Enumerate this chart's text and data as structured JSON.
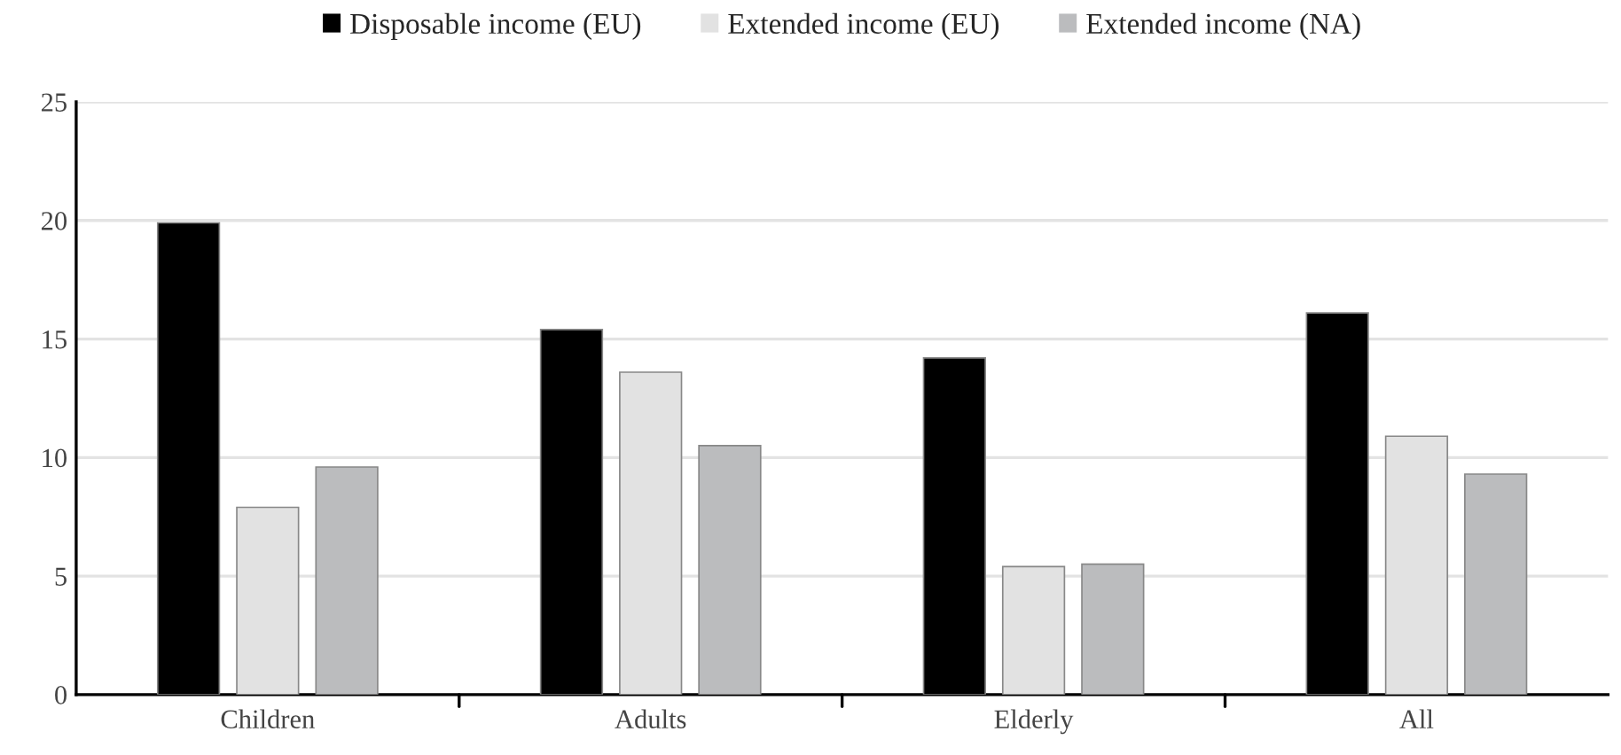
{
  "chart_data": {
    "type": "bar",
    "categories": [
      "Children",
      "Adults",
      "Elderly",
      "All"
    ],
    "series": [
      {
        "name": "Disposable income (EU)",
        "color": "#000000",
        "values": [
          19.9,
          15.4,
          14.2,
          16.1
        ]
      },
      {
        "name": "Extended income (EU)",
        "color": "#e2e2e2",
        "values": [
          7.9,
          13.6,
          5.4,
          10.9
        ]
      },
      {
        "name": "Extended income (NA)",
        "color": "#bbbcbe",
        "values": [
          9.6,
          10.5,
          5.5,
          9.3
        ]
      }
    ],
    "ylim": [
      0,
      25
    ],
    "yticks": [
      0,
      5,
      10,
      15,
      20,
      25
    ],
    "grid": "y",
    "legend": "top"
  }
}
